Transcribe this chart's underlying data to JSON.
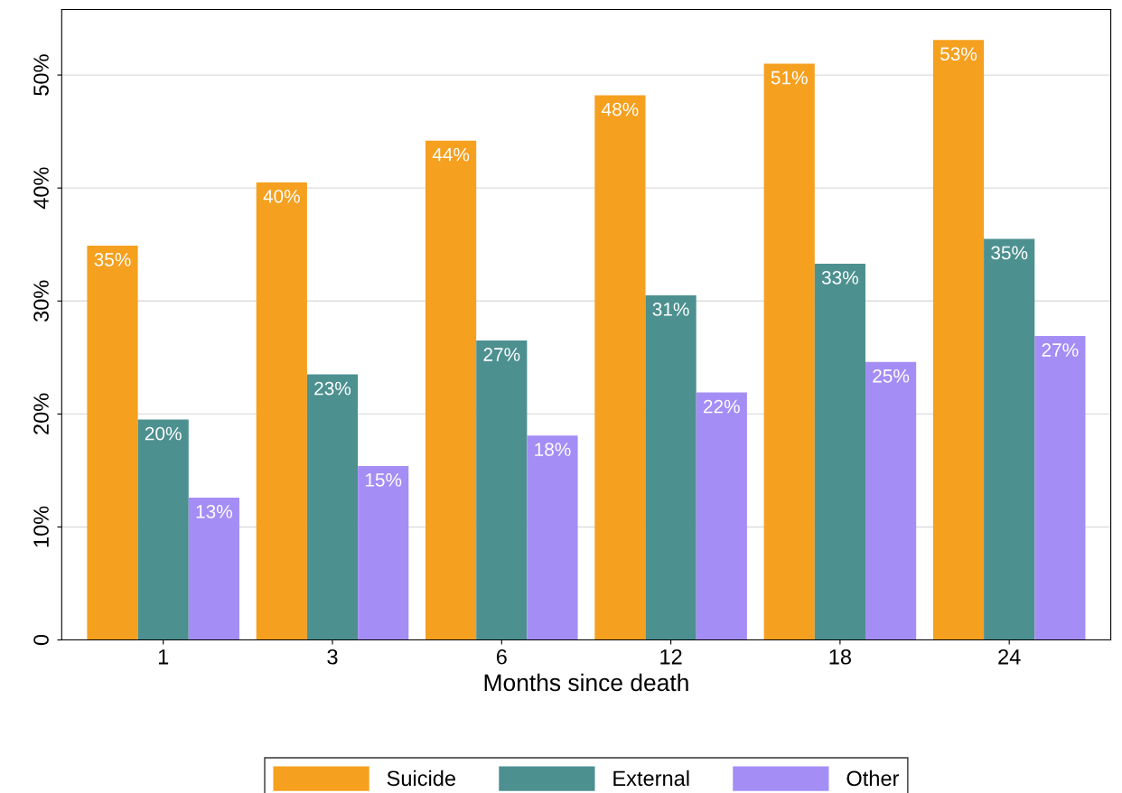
{
  "chart_data": {
    "type": "bar",
    "xlabel": "Months since death",
    "categories": [
      "1",
      "3",
      "6",
      "12",
      "18",
      "24"
    ],
    "series": [
      {
        "name": "Suicide",
        "color": "#f5a01f",
        "values": [
          34.9,
          40.5,
          44.2,
          48.2,
          51.0,
          53.1
        ],
        "value_labels": [
          "35%",
          "40%",
          "44%",
          "48%",
          "51%",
          "53%"
        ]
      },
      {
        "name": "External",
        "color": "#4d9090",
        "values": [
          19.5,
          23.5,
          26.5,
          30.5,
          33.3,
          35.5
        ],
        "value_labels": [
          "20%",
          "23%",
          "27%",
          "31%",
          "33%",
          "35%"
        ]
      },
      {
        "name": "Other",
        "color": "#a48ef5",
        "values": [
          12.6,
          15.4,
          18.1,
          21.9,
          24.6,
          26.9
        ],
        "value_labels": [
          "13%",
          "15%",
          "18%",
          "22%",
          "25%",
          "27%"
        ]
      }
    ],
    "ylim": [
      0,
      55.8
    ],
    "yticks": [
      0,
      {
        "value": 10,
        "label": "10%"
      },
      {
        "value": 20,
        "label": "20%"
      },
      {
        "value": 30,
        "label": "30%"
      },
      {
        "value": 40,
        "label": "40%"
      },
      {
        "value": 50,
        "label": "50%"
      }
    ],
    "grid": "y",
    "legend": "bottom"
  }
}
